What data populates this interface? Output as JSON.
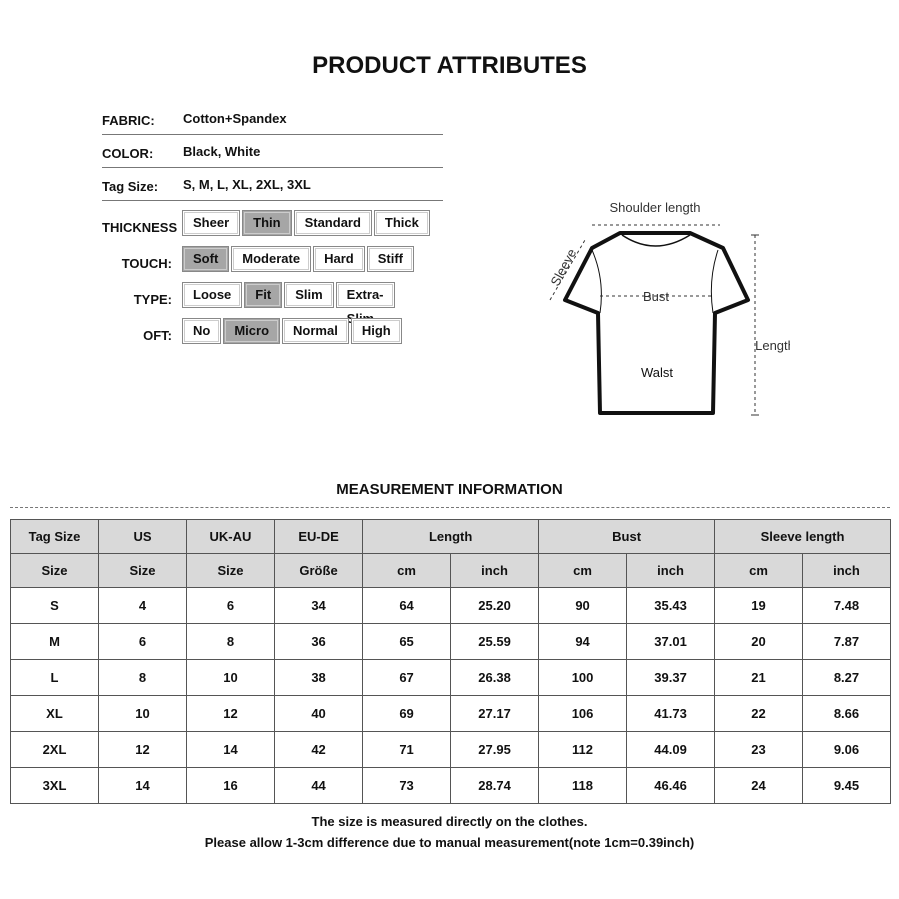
{
  "title": "PRODUCT ATTRIBUTES",
  "attributes": [
    {
      "label": "FABRIC:",
      "value": "Cotton+Spandex"
    },
    {
      "label": "COLOR:",
      "value": "Black,  White"
    },
    {
      "label": "Tag Size:",
      "value": "S,  M,  L,  XL,  2XL,  3XL"
    }
  ],
  "option_groups": [
    {
      "label": "THICKNESS",
      "options": [
        "Sheer",
        "Thin",
        "Standard",
        "Thick"
      ],
      "selected": "Thin"
    },
    {
      "label": "TOUCH:",
      "options": [
        "Soft",
        "Moderate",
        "Hard",
        "Stiff"
      ],
      "selected": "Soft"
    },
    {
      "label": "TYPE:",
      "options": [
        "Loose",
        "Fit",
        "Slim",
        "Extra-Slim"
      ],
      "selected": "Fit"
    },
    {
      "label": "OFT:",
      "options": [
        "No",
        "Micro",
        "Normal",
        "High"
      ],
      "selected": "Micro"
    }
  ],
  "diagram": {
    "shoulder": "Shoulder length",
    "sleeve": "Sleeve",
    "bust": "Bust",
    "waist": "Walst",
    "length": "Length"
  },
  "measurement_title": "MEASUREMENT INFORMATION",
  "table": {
    "header1": [
      "Tag Size",
      "US",
      "UK-AU",
      "EU-DE",
      "Length",
      "Bust",
      "Sleeve length"
    ],
    "header2": [
      "Size",
      "Size",
      "Size",
      "Größe",
      "cm",
      "inch",
      "cm",
      "inch",
      "cm",
      "inch"
    ],
    "rows": [
      [
        "S",
        "4",
        "6",
        "34",
        "64",
        "25.20",
        "90",
        "35.43",
        "19",
        "7.48"
      ],
      [
        "M",
        "6",
        "8",
        "36",
        "65",
        "25.59",
        "94",
        "37.01",
        "20",
        "7.87"
      ],
      [
        "L",
        "8",
        "10",
        "38",
        "67",
        "26.38",
        "100",
        "39.37",
        "21",
        "8.27"
      ],
      [
        "XL",
        "10",
        "12",
        "40",
        "69",
        "27.17",
        "106",
        "41.73",
        "22",
        "8.66"
      ],
      [
        "2XL",
        "12",
        "14",
        "42",
        "71",
        "27.95",
        "112",
        "44.09",
        "23",
        "9.06"
      ],
      [
        "3XL",
        "14",
        "16",
        "44",
        "73",
        "28.74",
        "118",
        "46.46",
        "24",
        "9.45"
      ]
    ]
  },
  "notes": [
    "The size is measured directly on the clothes.",
    "Please allow 1-3cm difference due to manual measurement(note 1cm=0.39inch)"
  ]
}
